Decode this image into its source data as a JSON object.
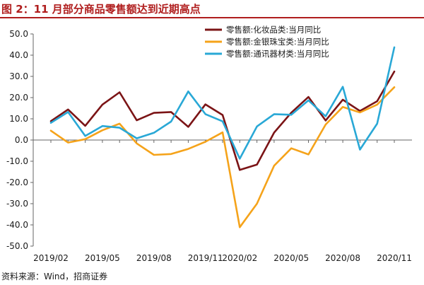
{
  "figure": {
    "title": "图 2：11 月部分商品零售额达到近期高点",
    "source": "资料来源：Wind，招商证券",
    "title_color": "#b01e1e"
  },
  "chart_data": {
    "type": "line",
    "title": "",
    "xlabel": "",
    "ylabel": "",
    "ylim": [
      -50,
      50
    ],
    "yticks": [
      -50,
      -40,
      -30,
      -20,
      -10,
      0,
      10,
      20,
      30,
      40,
      50
    ],
    "ytick_labels": [
      "-50.0",
      "-40.0",
      "-30.0",
      "-20.0",
      "-10.0",
      "0.0",
      "10.0",
      "20.0",
      "30.0",
      "40.0",
      "50.0"
    ],
    "x": [
      "2019/02",
      "2019/03",
      "2019/04",
      "2019/05",
      "2019/06",
      "2019/07",
      "2019/08",
      "2019/09",
      "2019/10",
      "2019/11",
      "2019/12",
      "2020/02",
      "2020/03",
      "2020/04",
      "2020/05",
      "2020/06",
      "2020/07",
      "2020/08",
      "2020/09",
      "2020/10",
      "2020/11"
    ],
    "xtick_labels": [
      "2019/02",
      "2019/05",
      "2019/08",
      "2019/11",
      "2020/02",
      "2020/05",
      "2020/08",
      "2020/11"
    ],
    "xtick_positions": [
      0,
      3,
      6,
      9,
      11,
      14,
      17,
      20
    ],
    "grid": false,
    "legend_position": "top-right",
    "series": [
      {
        "name": "零售额:化妆品类:当月同比",
        "color": "#7b1416",
        "values": [
          8.9,
          14.4,
          6.7,
          16.7,
          22.5,
          9.3,
          12.8,
          13.2,
          6.2,
          16.8,
          11.8,
          -14.1,
          -11.6,
          3.5,
          12.9,
          20.3,
          9.2,
          19.0,
          13.7,
          18.3,
          32.3
        ]
      },
      {
        "name": "零售额:金银珠宝类:当月同比",
        "color": "#f5a31a",
        "values": [
          4.4,
          -1.2,
          0.4,
          4.6,
          7.7,
          -1.6,
          -7.0,
          -6.6,
          -4.2,
          -0.8,
          3.6,
          -41.1,
          -30.0,
          -12.1,
          -3.9,
          -6.8,
          7.3,
          15.6,
          13.0,
          16.7,
          24.9
        ]
      },
      {
        "name": "零售额:通讯器材类:当月同比",
        "color": "#29a8d6",
        "values": [
          8.1,
          13.2,
          1.9,
          6.6,
          5.8,
          0.8,
          3.4,
          8.7,
          22.9,
          12.2,
          8.8,
          -8.8,
          6.4,
          12.2,
          11.9,
          18.7,
          11.2,
          25.1,
          -4.5,
          7.7,
          43.7
        ]
      }
    ]
  }
}
